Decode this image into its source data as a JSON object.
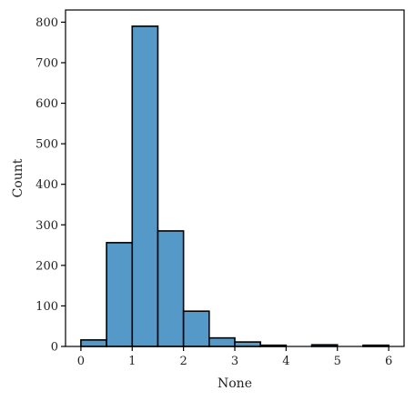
{
  "chart_data": {
    "type": "bar",
    "subtype": "histogram",
    "title": "",
    "xlabel": "None",
    "ylabel": "Count",
    "bin_width": 0.5,
    "bins": [
      {
        "x0": 0.0,
        "x1": 0.5,
        "count": 16
      },
      {
        "x0": 0.5,
        "x1": 1.0,
        "count": 256
      },
      {
        "x0": 1.0,
        "x1": 1.5,
        "count": 790
      },
      {
        "x0": 1.5,
        "x1": 2.0,
        "count": 285
      },
      {
        "x0": 2.0,
        "x1": 2.5,
        "count": 87
      },
      {
        "x0": 2.5,
        "x1": 3.0,
        "count": 21
      },
      {
        "x0": 3.0,
        "x1": 3.5,
        "count": 11
      },
      {
        "x0": 3.5,
        "x1": 4.0,
        "count": 3
      },
      {
        "x0": 4.0,
        "x1": 4.5,
        "count": 0
      },
      {
        "x0": 4.5,
        "x1": 5.0,
        "count": 4
      },
      {
        "x0": 5.0,
        "x1": 5.5,
        "count": 0
      },
      {
        "x0": 5.5,
        "x1": 6.0,
        "count": 3
      }
    ],
    "xlim": [
      -0.3,
      6.3
    ],
    "ylim": [
      0,
      830
    ],
    "xticks": [
      "0",
      "1",
      "2",
      "3",
      "4",
      "5",
      "6"
    ],
    "yticks": [
      "0",
      "100",
      "200",
      "300",
      "400",
      "500",
      "600",
      "700",
      "800"
    ],
    "grid": false,
    "bar_color": "#5499c7",
    "edge_color": "#000000"
  }
}
